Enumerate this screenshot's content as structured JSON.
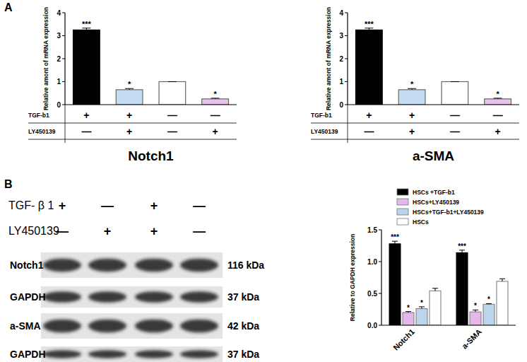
{
  "panel_labels": [
    "A",
    "B"
  ],
  "chart_data": [
    {
      "type": "bar",
      "title": "Notch1",
      "y_label": "Relative amont of mRNA expression",
      "categories": [
        null,
        null,
        null,
        null
      ],
      "values": [
        3.25,
        0.65,
        1.0,
        0.25
      ],
      "errors": [
        0.08,
        0.05,
        0,
        0.03
      ],
      "significance": [
        "***",
        "*",
        null,
        "*"
      ],
      "colors": [
        "#000000",
        "#c6dcf2",
        "#ffffff",
        "#e9c3ec"
      ],
      "treatments": [
        {
          "name": "TGF-b1",
          "signs": [
            "+",
            "+",
            "—",
            "—"
          ]
        },
        {
          "name": "LY450139",
          "signs": [
            "—",
            "+",
            "—",
            "+"
          ]
        }
      ],
      "ylim": [
        0,
        4
      ],
      "yticks": [
        0,
        1,
        2,
        3,
        4
      ],
      "grid": false
    },
    {
      "type": "bar",
      "title": "a-SMA",
      "y_label": "Relative amont of mRNA expression",
      "categories": [
        null,
        null,
        null,
        null
      ],
      "values": [
        3.25,
        0.65,
        1.0,
        0.25
      ],
      "errors": [
        0.08,
        0.05,
        0,
        0.03
      ],
      "significance": [
        "***",
        "*",
        null,
        "*"
      ],
      "colors": [
        "#000000",
        "#c6dcf2",
        "#ffffff",
        "#e9c3ec"
      ],
      "treatments": [
        {
          "name": "TGF-b1",
          "signs": [
            "+",
            "+",
            "—",
            "—"
          ]
        },
        {
          "name": "LY450139",
          "signs": [
            "—",
            "+",
            "—",
            "+"
          ]
        }
      ],
      "ylim": [
        0,
        4
      ],
      "yticks": [
        0,
        1,
        2,
        3,
        4
      ],
      "grid": false
    },
    {
      "type": "bar",
      "y_label": "Relative to GAPDH expression",
      "categories": [
        "Notch1",
        "a-SMA"
      ],
      "series": [
        {
          "name": "HSCs +TGF-b1",
          "color": "#000000",
          "values": [
            1.28,
            1.14
          ],
          "errors": [
            0.04,
            0.04
          ],
          "significance": [
            "***",
            "***"
          ]
        },
        {
          "name": "HSCs+LY450139",
          "color": "#e4b8ea",
          "values": [
            0.2,
            0.21
          ],
          "errors": [
            0.015,
            0.03
          ],
          "significance": [
            "*",
            "*"
          ]
        },
        {
          "name": "HSCs+TGF-b1+LY450139",
          "color": "#bcd4ec",
          "values": [
            0.26,
            0.33
          ],
          "errors": [
            0.03,
            0.01
          ],
          "significance": [
            "*",
            "*"
          ]
        },
        {
          "name": "HSCs",
          "color": "#ffffff",
          "values": [
            0.54,
            0.69
          ],
          "errors": [
            0.04,
            0.04
          ],
          "significance": [
            null,
            null
          ]
        }
      ],
      "ylim": [
        0,
        1.5
      ],
      "yticks": [
        {
          "value": 0,
          "label": "0.0"
        },
        0.5,
        {
          "value": 1,
          "label": "1.0"
        },
        1.5
      ],
      "legend": "upper right",
      "grid": false
    }
  ],
  "blot": {
    "treatments": [
      {
        "name": "TGF- β 1",
        "signs": [
          "+",
          "—",
          "+",
          "—"
        ]
      },
      {
        "name": "LY450139",
        "signs": [
          "—",
          "+",
          "+",
          "—"
        ]
      }
    ],
    "rows": [
      {
        "label": "Notch1",
        "size": "116 kDa"
      },
      {
        "label": "GAPDH",
        "size": "37 kDa"
      },
      {
        "label": "a-SMA",
        "size": "42 kDa"
      },
      {
        "label": "GAPDH",
        "size": "37 kDa"
      }
    ]
  }
}
